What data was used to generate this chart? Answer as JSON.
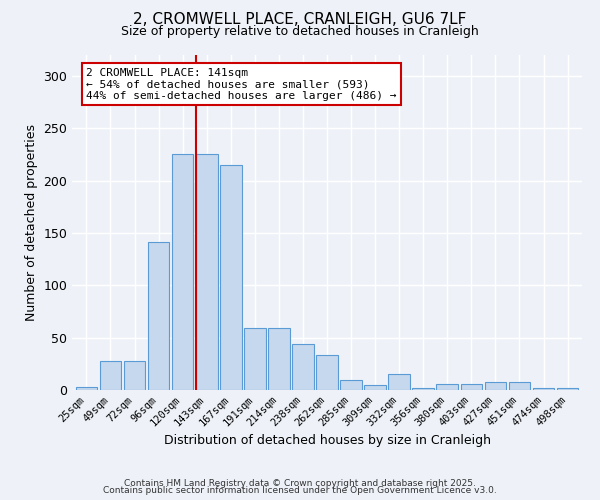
{
  "title1": "2, CROMWELL PLACE, CRANLEIGH, GU6 7LF",
  "title2": "Size of property relative to detached houses in Cranleigh",
  "xlabel": "Distribution of detached houses by size in Cranleigh",
  "ylabel": "Number of detached properties",
  "bin_labels": [
    "25sqm",
    "49sqm",
    "72sqm",
    "96sqm",
    "120sqm",
    "143sqm",
    "167sqm",
    "191sqm",
    "214sqm",
    "238sqm",
    "262sqm",
    "285sqm",
    "309sqm",
    "332sqm",
    "356sqm",
    "380sqm",
    "403sqm",
    "427sqm",
    "451sqm",
    "474sqm",
    "498sqm"
  ],
  "bar_heights": [
    3,
    28,
    28,
    141,
    225,
    225,
    215,
    59,
    59,
    44,
    33,
    10,
    5,
    15,
    2,
    6,
    6,
    8,
    8,
    2,
    2
  ],
  "bar_color": "#c5d8ed",
  "bar_edge_color": "#5b9bd5",
  "vline_color": "#cc0000",
  "annotation_text": "2 CROMWELL PLACE: 141sqm\n← 54% of detached houses are smaller (593)\n44% of semi-detached houses are larger (486) →",
  "annotation_box_color": "#ffffff",
  "annotation_box_edge": "#cc0000",
  "footer1": "Contains HM Land Registry data © Crown copyright and database right 2025.",
  "footer2": "Contains public sector information licensed under the Open Government Licence v3.0.",
  "background_color": "#eef2f8",
  "ylim": [
    0,
    320
  ],
  "yticks": [
    0,
    50,
    100,
    150,
    200,
    250,
    300
  ]
}
